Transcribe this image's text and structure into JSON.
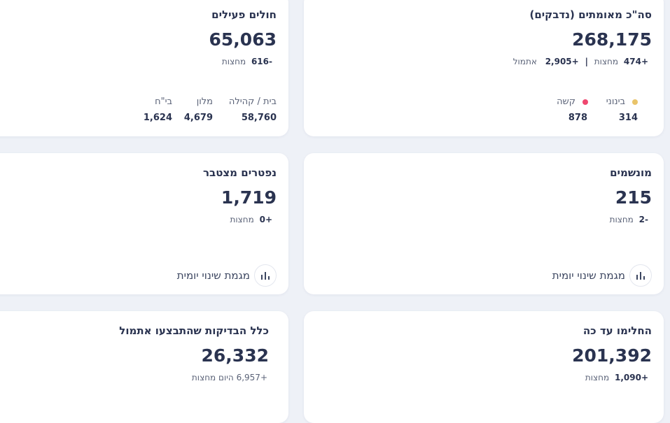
{
  "cards": {
    "confirmed": {
      "title": "סה\"כ מאומתים (נדבקים)",
      "value": "268,175",
      "sub_delta_mid": "+474",
      "sub_mid_word": "מחצות",
      "sub_delta_yest": "+2,905",
      "sub_yest_word": "אתמול",
      "sub_sep": "|",
      "breakdown": [
        {
          "label": "בינוני",
          "value": "314",
          "dot_color": "#e9c46a"
        },
        {
          "label": "קשה",
          "value": "878",
          "dot_color": "#ef476f"
        }
      ]
    },
    "active": {
      "title": "חולים פעילים",
      "value": "65,063",
      "sub_delta": "-616",
      "sub_word": "מחצות",
      "breakdown": [
        {
          "label": "בית / קהילה",
          "value": "58,760"
        },
        {
          "label": "מלון",
          "value": "4,679"
        },
        {
          "label": "בי\"ח",
          "value": "1,624"
        }
      ]
    },
    "ventilated": {
      "title": "מונשמים",
      "value": "215",
      "sub_delta": "-2",
      "sub_word": "מחצות",
      "chart_link": "מגמת שינוי יומית"
    },
    "deaths": {
      "title": "נפטרים מצטבר",
      "value": "1,719",
      "sub_delta": "+0",
      "sub_word": "מחצות",
      "chart_link": "מגמת שינוי יומית"
    },
    "recovered": {
      "title": "החלימו עד כה",
      "value": "201,392",
      "sub_delta": "+1,090",
      "sub_word": "מחצות"
    },
    "tests": {
      "title": "כלל הבדיקות שהתבצעו אתמול",
      "value": "26,332",
      "sub_text": "+6,957 היום מחצות"
    }
  },
  "icons": {
    "chart": "bar-chart-icon"
  }
}
